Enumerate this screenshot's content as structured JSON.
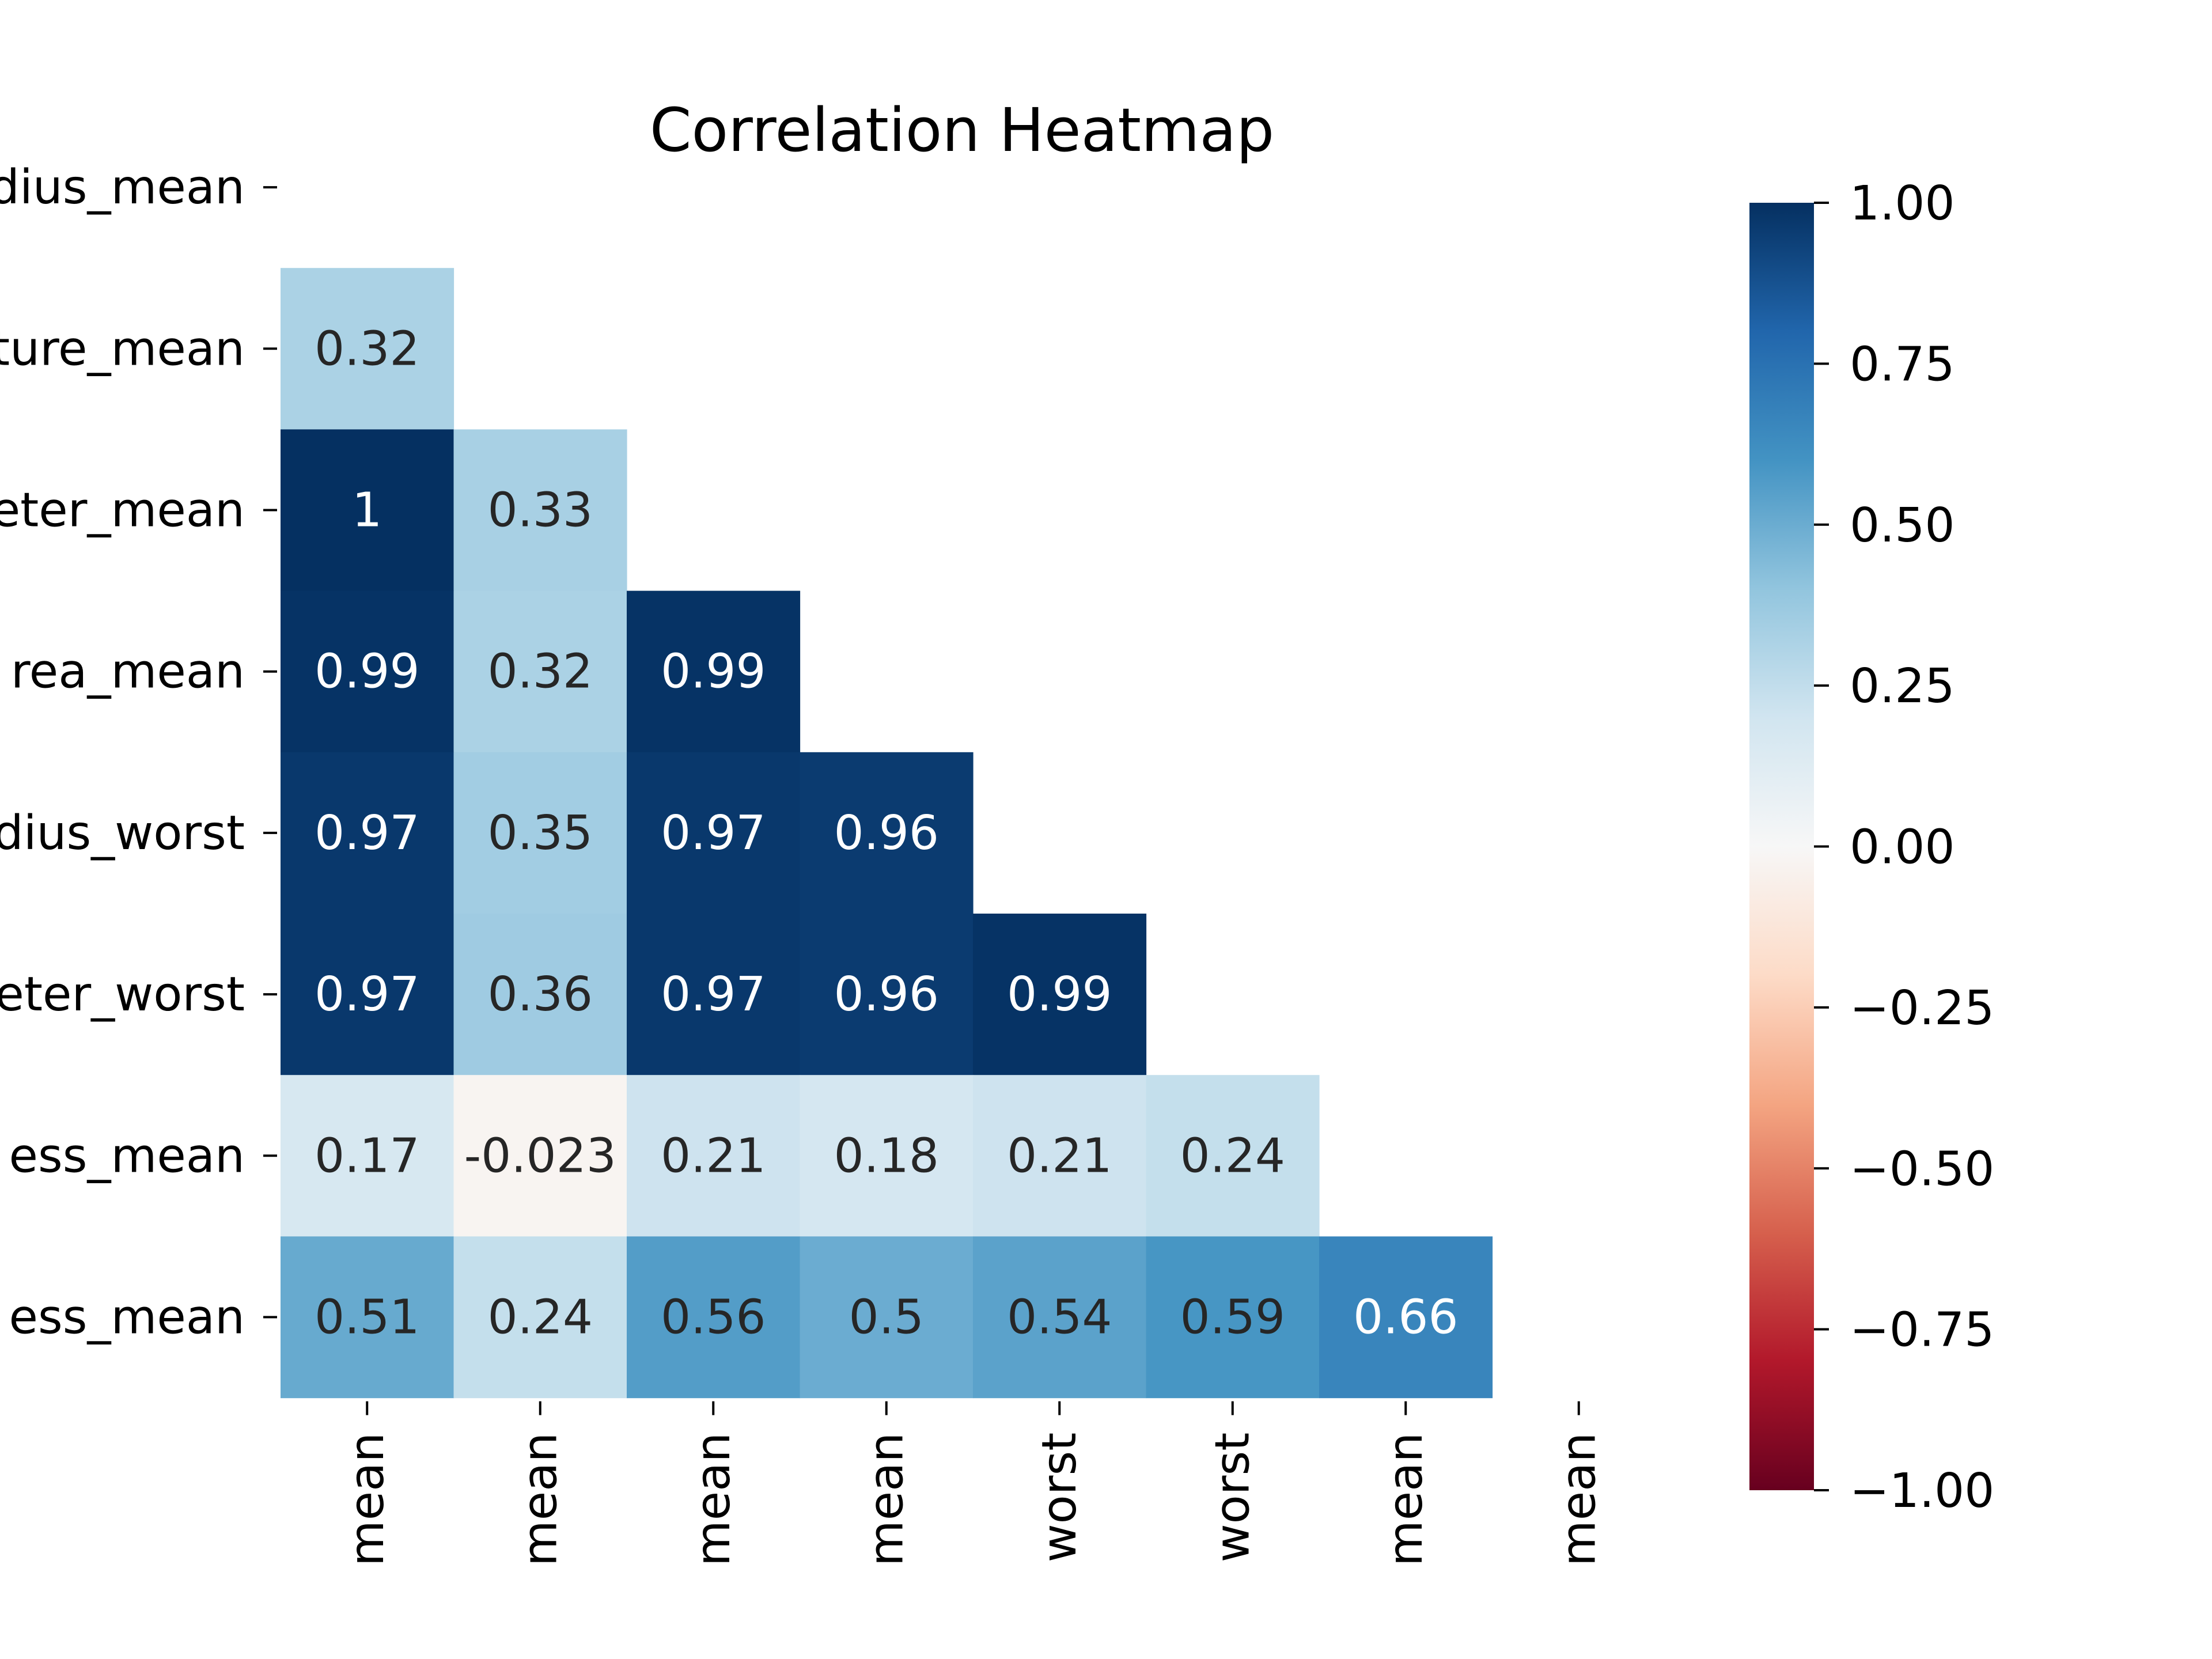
{
  "chart_data": {
    "type": "heatmap",
    "title": "Correlation Heatmap",
    "row_tick_labels": [
      "dius_mean",
      "ture_mean",
      "eter_mean",
      "rea_mean",
      "dius_worst",
      "eter_worst",
      "ess_mean",
      "ess_mean"
    ],
    "column_tick_labels": [
      "mean",
      "mean",
      "mean",
      "mean",
      "worst",
      "worst",
      "mean",
      "mean"
    ],
    "mask": "upper-triangle-including-diagonal",
    "rows": [
      {
        "cells": []
      },
      {
        "cells": [
          {
            "value": 0.32,
            "label": "0.32"
          }
        ]
      },
      {
        "cells": [
          {
            "value": 1.0,
            "label": "1"
          },
          {
            "value": 0.33,
            "label": "0.33"
          }
        ]
      },
      {
        "cells": [
          {
            "value": 0.99,
            "label": "0.99"
          },
          {
            "value": 0.32,
            "label": "0.32"
          },
          {
            "value": 0.99,
            "label": "0.99"
          }
        ]
      },
      {
        "cells": [
          {
            "value": 0.97,
            "label": "0.97"
          },
          {
            "value": 0.35,
            "label": "0.35"
          },
          {
            "value": 0.97,
            "label": "0.97"
          },
          {
            "value": 0.96,
            "label": "0.96"
          }
        ]
      },
      {
        "cells": [
          {
            "value": 0.97,
            "label": "0.97"
          },
          {
            "value": 0.36,
            "label": "0.36"
          },
          {
            "value": 0.97,
            "label": "0.97"
          },
          {
            "value": 0.96,
            "label": "0.96"
          },
          {
            "value": 0.99,
            "label": "0.99"
          }
        ]
      },
      {
        "cells": [
          {
            "value": 0.17,
            "label": "0.17"
          },
          {
            "value": -0.023,
            "label": "-0.023"
          },
          {
            "value": 0.21,
            "label": "0.21"
          },
          {
            "value": 0.18,
            "label": "0.18"
          },
          {
            "value": 0.21,
            "label": "0.21"
          },
          {
            "value": 0.24,
            "label": "0.24"
          }
        ]
      },
      {
        "cells": [
          {
            "value": 0.51,
            "label": "0.51"
          },
          {
            "value": 0.24,
            "label": "0.24"
          },
          {
            "value": 0.56,
            "label": "0.56"
          },
          {
            "value": 0.5,
            "label": "0.5"
          },
          {
            "value": 0.54,
            "label": "0.54"
          },
          {
            "value": 0.59,
            "label": "0.59"
          },
          {
            "value": 0.66,
            "label": "0.66"
          }
        ]
      }
    ],
    "colorbar": {
      "colormap": "RdBu",
      "range": [
        -1.0,
        1.0
      ],
      "ticks": [
        {
          "value": 1.0,
          "label": "1.00"
        },
        {
          "value": 0.75,
          "label": "0.75"
        },
        {
          "value": 0.5,
          "label": "0.50"
        },
        {
          "value": 0.25,
          "label": "0.25"
        },
        {
          "value": 0.0,
          "label": "0.00"
        },
        {
          "value": -0.25,
          "label": "−0.25"
        },
        {
          "value": -0.5,
          "label": "−0.50"
        },
        {
          "value": -0.75,
          "label": "−0.75"
        },
        {
          "value": -1.0,
          "label": "−1.00"
        }
      ]
    },
    "colors": {
      "stops": [
        "#67001f",
        "#b2182b",
        "#d6604d",
        "#f4a582",
        "#fddbc7",
        "#f7f7f7",
        "#d1e5f0",
        "#92c5de",
        "#4393c3",
        "#2166ac",
        "#053061"
      ],
      "text_dark": "#262626",
      "text_light": "#ffffff",
      "axis": "#000000"
    }
  }
}
